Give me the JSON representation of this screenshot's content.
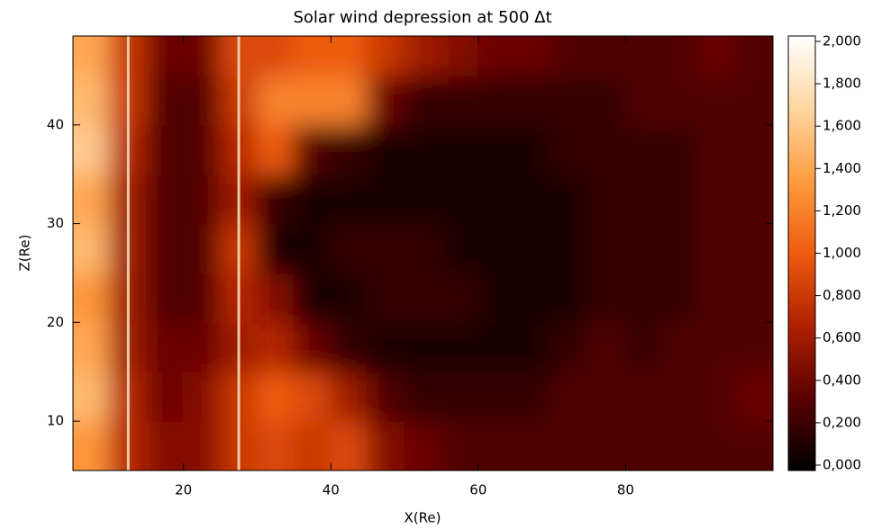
{
  "chart_data": {
    "type": "heatmap",
    "title": "Solar wind depression at 500 Δt",
    "x_label": "X(Re)",
    "y_label": "Z(Re)",
    "xlim": [
      5,
      100
    ],
    "ylim": [
      5,
      49
    ],
    "xticks": [
      20,
      40,
      60,
      80
    ],
    "yticks": [
      10,
      20,
      30,
      40
    ],
    "x": [
      7.5,
      12.5,
      17.5,
      22.5,
      27.5,
      32.5,
      37.5,
      42.5,
      47.5,
      52.5,
      57.5,
      62.5,
      67.5,
      72.5,
      77.5,
      82.5,
      87.5,
      92.5,
      97.5
    ],
    "y": [
      7.5,
      12.5,
      17.5,
      22.5,
      27.5,
      32.5,
      37.5,
      42.5,
      47.5
    ],
    "values": [
      [
        1.3,
        0.7,
        0.5,
        0.5,
        0.8,
        0.9,
        0.8,
        0.9,
        0.5,
        0.4,
        0.3,
        0.3,
        0.3,
        0.3,
        0.3,
        0.3,
        0.3,
        0.3,
        0.3
      ],
      [
        1.5,
        0.7,
        0.4,
        0.5,
        0.8,
        1.0,
        0.9,
        0.6,
        0.3,
        0.2,
        0.2,
        0.2,
        0.2,
        0.3,
        0.3,
        0.3,
        0.3,
        0.3,
        0.4
      ],
      [
        1.4,
        0.6,
        0.4,
        0.4,
        0.6,
        0.7,
        0.4,
        0.2,
        0.1,
        0.1,
        0.1,
        0.1,
        0.1,
        0.2,
        0.3,
        0.2,
        0.3,
        0.3,
        0.3
      ],
      [
        1.3,
        0.6,
        0.3,
        0.3,
        0.7,
        0.5,
        0.1,
        0.1,
        0.2,
        0.2,
        0.2,
        0.1,
        0.1,
        0.1,
        0.2,
        0.2,
        0.2,
        0.3,
        0.3
      ],
      [
        1.5,
        0.6,
        0.3,
        0.3,
        0.8,
        0.1,
        0.1,
        0.2,
        0.2,
        0.2,
        0.1,
        0.1,
        0.1,
        0.1,
        0.2,
        0.2,
        0.2,
        0.3,
        0.3
      ],
      [
        1.4,
        0.6,
        0.3,
        0.3,
        0.6,
        0.2,
        0.1,
        0.1,
        0.1,
        0.1,
        0.1,
        0.1,
        0.1,
        0.1,
        0.2,
        0.2,
        0.2,
        0.3,
        0.3
      ],
      [
        1.6,
        0.7,
        0.3,
        0.3,
        0.7,
        1.0,
        0.3,
        0.2,
        0.1,
        0.1,
        0.1,
        0.1,
        0.1,
        0.2,
        0.2,
        0.2,
        0.2,
        0.3,
        0.3
      ],
      [
        1.5,
        0.8,
        0.3,
        0.3,
        0.8,
        1.2,
        1.2,
        1.2,
        0.4,
        0.2,
        0.2,
        0.2,
        0.2,
        0.2,
        0.2,
        0.3,
        0.3,
        0.3,
        0.3
      ],
      [
        1.4,
        0.8,
        0.4,
        0.4,
        0.9,
        0.9,
        1.0,
        1.0,
        0.8,
        0.6,
        0.5,
        0.4,
        0.4,
        0.3,
        0.3,
        0.3,
        0.3,
        0.4,
        0.3
      ]
    ],
    "vlines": [
      12.5,
      27.5
    ],
    "vline_color": "#e9c9a6",
    "colormap": [
      "#000000",
      "#5a0000",
      "#b02000",
      "#ee5c10",
      "#ff9c40",
      "#ffd6a0",
      "#ffffff"
    ],
    "colorbar_lim": [
      0,
      2
    ],
    "colorbar_ticks": [
      {
        "value": 0,
        "label": "0,000"
      },
      {
        "value": 0.2,
        "label": "0,200"
      },
      {
        "value": 0.4,
        "label": "0,400"
      },
      {
        "value": 0.6,
        "label": "0,600"
      },
      {
        "value": 0.8,
        "label": "0,800"
      },
      {
        "value": 1,
        "label": "1,000"
      },
      {
        "value": 1.2,
        "label": "1,200"
      },
      {
        "value": 1.4,
        "label": "1,400"
      },
      {
        "value": 1.6,
        "label": "1,600"
      },
      {
        "value": 1.8,
        "label": "1,800"
      },
      {
        "value": 2,
        "label": "2,000"
      }
    ]
  }
}
